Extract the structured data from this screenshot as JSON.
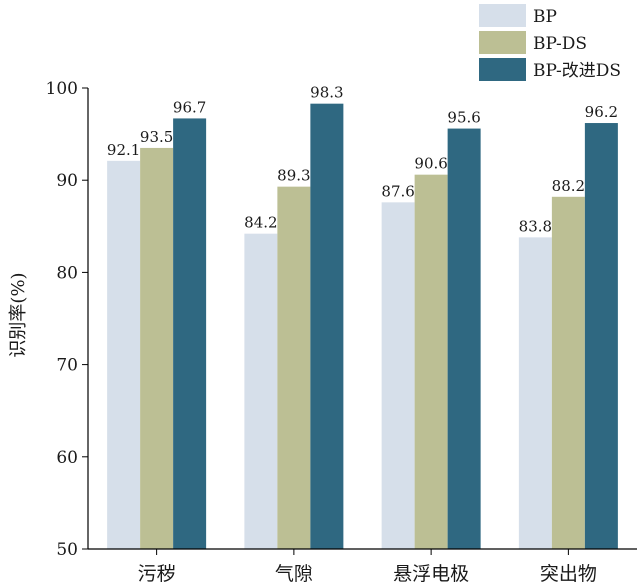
{
  "chart_data": {
    "type": "bar",
    "title": "",
    "xlabel": "",
    "ylabel": "识别率(%)",
    "ylim": [
      50,
      100
    ],
    "yticks": [
      50,
      60,
      70,
      80,
      90,
      100
    ],
    "grid": false,
    "legend_position": "top-right",
    "categories": [
      "污秽",
      "气隙",
      "悬浮电极",
      "突出物"
    ],
    "series": [
      {
        "name": "BP",
        "color": "#d6dfea",
        "values": [
          92.1,
          84.2,
          87.6,
          83.8
        ],
        "labels": [
          "92.1",
          "84.2",
          "87.6",
          "83.8"
        ]
      },
      {
        "name": "BP-DS",
        "color": "#bcbf94",
        "values": [
          93.5,
          89.3,
          90.6,
          88.2
        ],
        "labels": [
          "93.5",
          "89.3",
          "90.6",
          "88.2"
        ]
      },
      {
        "name": "BP-改进DS",
        "color": "#2f6881",
        "values": [
          96.7,
          98.3,
          95.6,
          96.2
        ],
        "labels": [
          "96.7",
          "98.3",
          "95.6",
          "96.2"
        ]
      }
    ]
  }
}
